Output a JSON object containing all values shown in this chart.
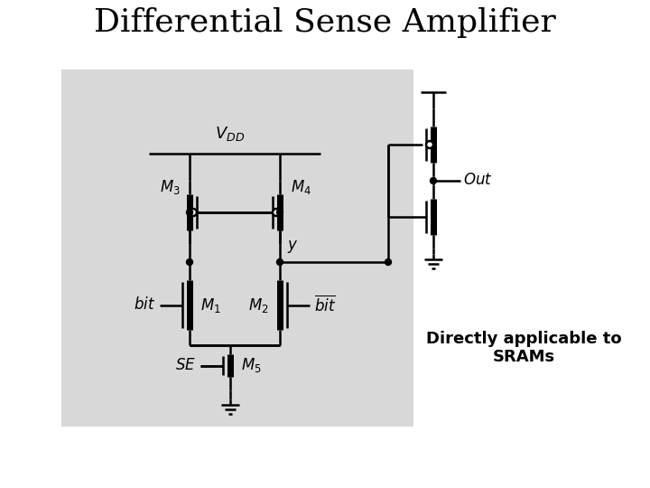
{
  "title": "Differential Sense Amplifier",
  "title_fontsize": 26,
  "bg_facecolor": "#d8d8d8",
  "line_color": "#000000",
  "note_text": "Directly applicable to\nSRAMs",
  "note_fontsize": 13,
  "label_fontsize": 12,
  "lw": 1.8
}
